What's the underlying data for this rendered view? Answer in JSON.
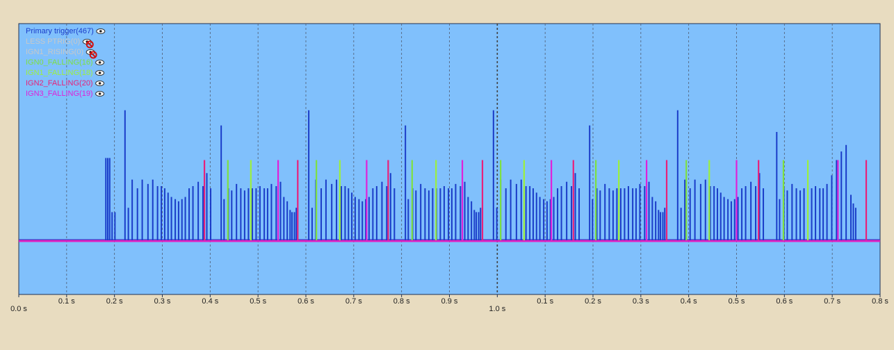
{
  "chart_data": {
    "type": "spikes",
    "xlim": [
      0,
      1.8
    ],
    "ylim": [
      -25,
      100
    ],
    "grid": true,
    "xticks": [
      {
        "value": 0,
        "label": "0.0 s"
      },
      {
        "value": 0.1,
        "label": "0.1 s"
      },
      {
        "value": 0.2,
        "label": "0.2 s"
      },
      {
        "value": 0.3,
        "label": "0.3 s"
      },
      {
        "value": 0.4,
        "label": "0.4 s"
      },
      {
        "value": 0.5,
        "label": "0.5 s"
      },
      {
        "value": 0.6,
        "label": "0.6 s"
      },
      {
        "value": 0.7,
        "label": "0.7 s"
      },
      {
        "value": 0.8,
        "label": "0.8 s"
      },
      {
        "value": 0.9,
        "label": "0.9 s"
      },
      {
        "value": 1.0,
        "label": "1.0 s"
      },
      {
        "value": 1.1,
        "label": "0.1 s"
      },
      {
        "value": 1.2,
        "label": "0.2 s"
      },
      {
        "value": 1.3,
        "label": "0.3 s"
      },
      {
        "value": 1.4,
        "label": "0.4 s"
      },
      {
        "value": 1.5,
        "label": "0.5 s"
      },
      {
        "value": 1.6,
        "label": "0.6 s"
      },
      {
        "value": 1.7,
        "label": "0.7 s"
      },
      {
        "value": 1.8,
        "label": "0.8 s"
      }
    ],
    "series": [
      {
        "name": "Primary trigger(467)",
        "color": "#1a3cc8",
        "visible": true,
        "x": [
          0.182,
          0.186,
          0.19,
          0.195,
          0.201,
          0.222,
          0.229,
          0.237,
          0.248,
          0.258,
          0.27,
          0.28,
          0.29,
          0.298,
          0.305,
          0.312,
          0.319,
          0.327,
          0.334,
          0.341,
          0.348,
          0.356,
          0.364,
          0.375,
          0.385,
          0.393,
          0.401,
          0.423,
          0.429,
          0.438,
          0.445,
          0.455,
          0.464,
          0.472,
          0.48,
          0.488,
          0.496,
          0.504,
          0.513,
          0.52,
          0.528,
          0.538,
          0.547,
          0.554,
          0.561,
          0.567,
          0.571,
          0.576,
          0.58,
          0.606,
          0.613,
          0.621,
          0.632,
          0.642,
          0.654,
          0.664,
          0.674,
          0.682,
          0.689,
          0.696,
          0.703,
          0.711,
          0.718,
          0.725,
          0.732,
          0.74,
          0.748,
          0.759,
          0.769,
          0.777,
          0.785,
          0.808,
          0.814,
          0.823,
          0.83,
          0.84,
          0.849,
          0.857,
          0.865,
          0.873,
          0.881,
          0.889,
          0.898,
          0.905,
          0.913,
          0.923,
          0.932,
          0.939,
          0.946,
          0.952,
          0.956,
          0.961,
          0.965,
          0.992,
          0.999,
          1.007,
          1.018,
          1.028,
          1.04,
          1.05,
          1.06,
          1.068,
          1.075,
          1.082,
          1.089,
          1.097,
          1.104,
          1.111,
          1.118,
          1.126,
          1.134,
          1.145,
          1.155,
          1.163,
          1.171,
          1.193,
          1.199,
          1.208,
          1.215,
          1.225,
          1.234,
          1.242,
          1.25,
          1.258,
          1.266,
          1.274,
          1.283,
          1.29,
          1.298,
          1.308,
          1.317,
          1.324,
          1.331,
          1.337,
          1.341,
          1.346,
          1.35,
          1.377,
          1.384,
          1.392,
          1.403,
          1.413,
          1.425,
          1.435,
          1.445,
          1.453,
          1.46,
          1.467,
          1.474,
          1.482,
          1.489,
          1.496,
          1.503,
          1.511,
          1.519,
          1.53,
          1.54,
          1.548,
          1.556,
          1.584,
          1.59,
          1.599,
          1.606,
          1.616,
          1.625,
          1.633,
          1.641,
          1.649,
          1.657,
          1.665,
          1.674,
          1.681,
          1.689,
          1.699,
          1.709,
          1.719,
          1.729,
          1.739,
          1.744,
          1.749
        ],
        "values": [
          38,
          38,
          38,
          13,
          13,
          60,
          15,
          28,
          24,
          28,
          26,
          28,
          25,
          25,
          24,
          22,
          20,
          19,
          18,
          19,
          20,
          24,
          25,
          27,
          25,
          31,
          24,
          53,
          19,
          24,
          23,
          26,
          24,
          23,
          24,
          24,
          24,
          25,
          24,
          24,
          26,
          25,
          27,
          20,
          18,
          14,
          13,
          13,
          15,
          60,
          15,
          28,
          24,
          28,
          26,
          28,
          25,
          25,
          24,
          22,
          20,
          19,
          18,
          19,
          20,
          24,
          25,
          27,
          25,
          31,
          24,
          53,
          19,
          24,
          23,
          26,
          24,
          23,
          24,
          24,
          24,
          25,
          24,
          24,
          26,
          25,
          27,
          20,
          18,
          14,
          13,
          13,
          15,
          60,
          15,
          28,
          24,
          28,
          26,
          28,
          25,
          25,
          24,
          22,
          20,
          19,
          18,
          19,
          20,
          24,
          25,
          27,
          25,
          31,
          24,
          53,
          19,
          24,
          23,
          26,
          24,
          23,
          24,
          24,
          24,
          25,
          24,
          24,
          26,
          25,
          27,
          20,
          18,
          14,
          13,
          13,
          15,
          60,
          15,
          28,
          24,
          28,
          26,
          28,
          25,
          25,
          24,
          22,
          20,
          19,
          18,
          19,
          20,
          24,
          25,
          27,
          25,
          31,
          24,
          50,
          19,
          24,
          23,
          26,
          24,
          23,
          24,
          24,
          24,
          25,
          24,
          24,
          26,
          30,
          37,
          41,
          44,
          21,
          17,
          15
        ]
      },
      {
        "name": "LESS PTRIG(0)",
        "color": "#c8c8c8",
        "visible": false,
        "x": [],
        "values": []
      },
      {
        "name": "IGN1_RISING(0)",
        "color": "#c8c8c8",
        "visible": false,
        "x": [],
        "values": []
      },
      {
        "name": "IGN0_FALLING(16)",
        "color": "#7ee040",
        "visible": true,
        "x": [
          0.437,
          0.622,
          0.822,
          1.007,
          1.206,
          1.395,
          1.598
        ],
        "values": [
          37,
          37,
          37,
          37,
          37,
          37,
          37
        ]
      },
      {
        "name": "IGN1_FALLING(18)",
        "color": "#9cf03c",
        "visible": true,
        "x": [
          0.485,
          0.671,
          0.872,
          1.056,
          1.254,
          1.443,
          1.649
        ],
        "values": [
          37,
          37,
          37,
          37,
          37,
          37,
          37
        ]
      },
      {
        "name": "IGN2_FALLING(20)",
        "color": "#e8207a",
        "visible": true,
        "x": [
          0.388,
          0.583,
          0.772,
          0.969,
          1.159,
          1.354,
          1.546,
          1.771
        ],
        "values": [
          37,
          37,
          37,
          37,
          37,
          37,
          37,
          37
        ]
      },
      {
        "name": "IGN3_FALLING(19)",
        "color": "#e020d8",
        "visible": true,
        "x": [
          0.542,
          0.727,
          0.927,
          1.113,
          1.312,
          1.5,
          1.712
        ],
        "values": [
          37,
          37,
          37,
          37,
          37,
          37,
          37
        ]
      }
    ]
  }
}
